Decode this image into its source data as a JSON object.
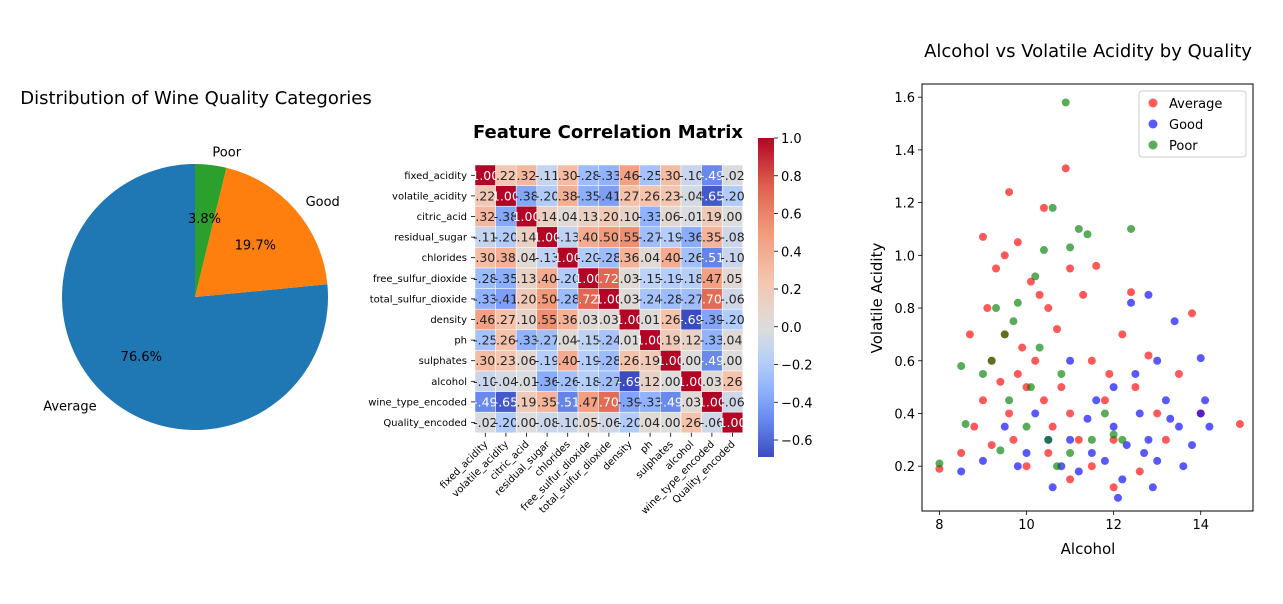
{
  "chart_data": [
    {
      "type": "pie",
      "title": "Distribution of Wine Quality Categories",
      "labels": [
        "Average",
        "Good",
        "Poor"
      ],
      "values": [
        76.6,
        19.7,
        3.8
      ],
      "pct_labels": [
        "76.6%",
        "19.7%",
        "3.8%"
      ],
      "colors": [
        "#1f77b4",
        "#ff7f0e",
        "#2ca02c"
      ]
    },
    {
      "type": "heatmap",
      "title": "Feature Correlation Matrix",
      "labels": [
        "fixed_acidity",
        "volatile_acidity",
        "citric_acid",
        "residual_sugar",
        "chlorides",
        "free_sulfur_dioxide",
        "total_sulfur_dioxide",
        "density",
        "ph",
        "sulphates",
        "alcohol",
        "wine_type_encoded",
        "Quality_encoded"
      ],
      "colorbar": {
        "min": -0.69,
        "max": 1.0,
        "ticks": [
          "1.0",
          "0.8",
          "0.6",
          "0.4",
          "0.2",
          "0.0",
          "−0.2",
          "−0.4",
          "−0.6"
        ]
      },
      "matrix": [
        [
          1.0,
          0.22,
          0.32,
          -0.11,
          0.3,
          -0.28,
          -0.33,
          0.46,
          -0.25,
          0.3,
          -0.1,
          -0.49,
          -0.02
        ],
        [
          0.22,
          1.0,
          -0.38,
          -0.2,
          0.38,
          -0.35,
          -0.41,
          0.27,
          0.26,
          0.23,
          -0.04,
          -0.65,
          -0.2
        ],
        [
          0.32,
          -0.38,
          1.0,
          0.14,
          0.04,
          0.13,
          0.2,
          0.1,
          -0.33,
          0.06,
          -0.01,
          0.19,
          0.0
        ],
        [
          -0.11,
          -0.2,
          0.14,
          1.0,
          -0.13,
          0.4,
          0.5,
          0.55,
          -0.27,
          -0.19,
          -0.36,
          0.35,
          -0.08
        ],
        [
          0.3,
          0.38,
          0.04,
          -0.13,
          1.0,
          -0.2,
          -0.28,
          0.36,
          0.04,
          0.4,
          -0.26,
          -0.51,
          -0.1
        ],
        [
          -0.28,
          -0.35,
          0.13,
          0.4,
          -0.2,
          1.0,
          0.72,
          0.03,
          -0.15,
          -0.19,
          -0.18,
          0.47,
          0.05
        ],
        [
          -0.33,
          -0.41,
          0.2,
          0.5,
          -0.28,
          0.72,
          1.0,
          0.03,
          -0.24,
          -0.28,
          -0.27,
          0.7,
          -0.06
        ],
        [
          0.46,
          0.27,
          0.1,
          0.55,
          0.36,
          0.03,
          0.03,
          1.0,
          0.01,
          0.26,
          -0.69,
          -0.39,
          -0.2
        ],
        [
          -0.25,
          0.26,
          -0.33,
          -0.27,
          0.04,
          -0.15,
          -0.24,
          0.01,
          1.0,
          0.19,
          0.12,
          -0.33,
          0.04
        ],
        [
          0.3,
          0.23,
          0.06,
          -0.19,
          0.4,
          -0.19,
          -0.28,
          0.26,
          0.19,
          1.0,
          -0.0,
          -0.49,
          0.0
        ],
        [
          -0.1,
          -0.04,
          -0.01,
          -0.36,
          -0.26,
          -0.18,
          -0.27,
          -0.69,
          0.12,
          -0.0,
          1.0,
          0.03,
          0.26
        ],
        [
          -0.49,
          -0.65,
          0.19,
          0.35,
          -0.51,
          0.47,
          0.7,
          -0.39,
          -0.33,
          -0.49,
          0.03,
          1.0,
          -0.06
        ],
        [
          -0.02,
          -0.2,
          0.0,
          -0.08,
          -0.1,
          0.05,
          -0.06,
          -0.2,
          0.04,
          0.0,
          0.26,
          -0.06,
          1.0
        ]
      ]
    },
    {
      "type": "scatter",
      "title": "Alcohol vs Volatile Acidity by Quality",
      "xlabel": "Alcohol",
      "ylabel": "Volatile Acidity",
      "xlim": [
        7.6,
        15.2
      ],
      "ylim": [
        0.03,
        1.65
      ],
      "xticks": [
        8,
        10,
        12,
        14
      ],
      "yticks": [
        0.2,
        0.4,
        0.6,
        0.8,
        1.0,
        1.2,
        1.4,
        1.6
      ],
      "legend": "top-right",
      "series": [
        {
          "name": "Average",
          "color": "#ff0000",
          "points": [
            [
              9.0,
              0.45
            ],
            [
              9.2,
              0.6
            ],
            [
              9.4,
              0.52
            ],
            [
              9.5,
              0.7
            ],
            [
              9.6,
              0.4
            ],
            [
              9.8,
              0.55
            ],
            [
              9.9,
              0.65
            ],
            [
              10.0,
              0.5
            ],
            [
              10.2,
              0.6
            ],
            [
              10.4,
              0.45
            ],
            [
              10.5,
              0.8
            ],
            [
              10.6,
              0.35
            ],
            [
              10.8,
              0.5
            ],
            [
              11.0,
              0.4
            ],
            [
              11.2,
              0.3
            ],
            [
              11.5,
              0.6
            ],
            [
              11.8,
              0.45
            ],
            [
              12.0,
              0.3
            ],
            [
              12.5,
              0.5
            ],
            [
              13.0,
              0.4
            ],
            [
              9.1,
              0.8
            ],
            [
              9.3,
              0.95
            ],
            [
              9.5,
              1.0
            ],
            [
              9.6,
              1.24
            ],
            [
              9.8,
              1.05
            ],
            [
              10.1,
              0.9
            ],
            [
              10.3,
              0.85
            ],
            [
              10.9,
              1.33
            ],
            [
              11.0,
              0.95
            ],
            [
              11.3,
              0.85
            ],
            [
              12.2,
              0.7
            ],
            [
              12.8,
              0.62
            ],
            [
              13.5,
              0.55
            ],
            [
              14.0,
              0.4
            ],
            [
              14.9,
              0.36
            ],
            [
              8.0,
              0.19
            ],
            [
              8.5,
              0.25
            ],
            [
              8.7,
              0.7
            ],
            [
              9.0,
              1.07
            ],
            [
              10.4,
              1.18
            ],
            [
              11.6,
              0.96
            ],
            [
              12.4,
              0.86
            ],
            [
              13.8,
              0.78
            ],
            [
              9.7,
              0.3
            ],
            [
              10.0,
              0.2
            ],
            [
              10.5,
              0.25
            ],
            [
              11.0,
              0.15
            ],
            [
              11.5,
              0.2
            ],
            [
              12.0,
              0.12
            ],
            [
              12.6,
              0.18
            ],
            [
              13.2,
              0.3
            ],
            [
              8.8,
              0.35
            ],
            [
              9.2,
              0.28
            ],
            [
              10.7,
              0.72
            ],
            [
              11.9,
              0.55
            ]
          ]
        },
        {
          "name": "Good",
          "color": "#0000ff",
          "points": [
            [
              11.0,
              0.3
            ],
            [
              11.5,
              0.25
            ],
            [
              12.0,
              0.35
            ],
            [
              12.3,
              0.28
            ],
            [
              12.6,
              0.4
            ],
            [
              12.8,
              0.3
            ],
            [
              13.0,
              0.22
            ],
            [
              13.2,
              0.45
            ],
            [
              13.5,
              0.35
            ],
            [
              13.8,
              0.28
            ],
            [
              14.0,
              0.4
            ],
            [
              14.2,
              0.35
            ],
            [
              12.4,
              0.82
            ],
            [
              12.8,
              0.85
            ],
            [
              13.4,
              0.75
            ],
            [
              14.0,
              0.61
            ],
            [
              10.8,
              0.2
            ],
            [
              11.2,
              0.18
            ],
            [
              11.8,
              0.22
            ],
            [
              12.2,
              0.15
            ],
            [
              10.0,
              0.25
            ],
            [
              10.5,
              0.3
            ],
            [
              9.5,
              0.35
            ],
            [
              9.0,
              0.22
            ],
            [
              8.5,
              0.18
            ],
            [
              12.0,
              0.5
            ],
            [
              12.5,
              0.55
            ],
            [
              13.0,
              0.6
            ],
            [
              11.0,
              0.6
            ],
            [
              11.6,
              0.45
            ],
            [
              13.6,
              0.2
            ],
            [
              12.9,
              0.12
            ],
            [
              12.1,
              0.08
            ],
            [
              10.6,
              0.12
            ],
            [
              14.1,
              0.45
            ],
            [
              13.3,
              0.38
            ],
            [
              12.7,
              0.25
            ],
            [
              11.4,
              0.38
            ],
            [
              10.2,
              0.4
            ],
            [
              9.8,
              0.2
            ]
          ]
        },
        {
          "name": "Poor",
          "color": "#008000",
          "points": [
            [
              10.9,
              1.58
            ],
            [
              11.2,
              1.1
            ],
            [
              11.4,
              1.08
            ],
            [
              12.4,
              1.1
            ],
            [
              10.2,
              0.92
            ],
            [
              9.8,
              0.82
            ],
            [
              9.5,
              0.7
            ],
            [
              9.2,
              0.6
            ],
            [
              9.0,
              0.55
            ],
            [
              8.5,
              0.58
            ],
            [
              10.4,
              1.02
            ],
            [
              10.6,
              1.18
            ],
            [
              11.0,
              1.03
            ],
            [
              9.6,
              0.45
            ],
            [
              10.0,
              0.35
            ],
            [
              10.5,
              0.3
            ],
            [
              11.0,
              0.25
            ],
            [
              11.5,
              0.3
            ],
            [
              12.0,
              0.32
            ],
            [
              8.0,
              0.21
            ],
            [
              8.6,
              0.36
            ],
            [
              9.4,
              0.26
            ],
            [
              10.8,
              0.55
            ],
            [
              11.8,
              0.4
            ],
            [
              10.3,
              0.65
            ],
            [
              9.7,
              0.75
            ],
            [
              10.1,
              0.5
            ],
            [
              12.2,
              0.3
            ],
            [
              9.3,
              0.8
            ],
            [
              10.7,
              0.2
            ]
          ]
        }
      ]
    }
  ]
}
